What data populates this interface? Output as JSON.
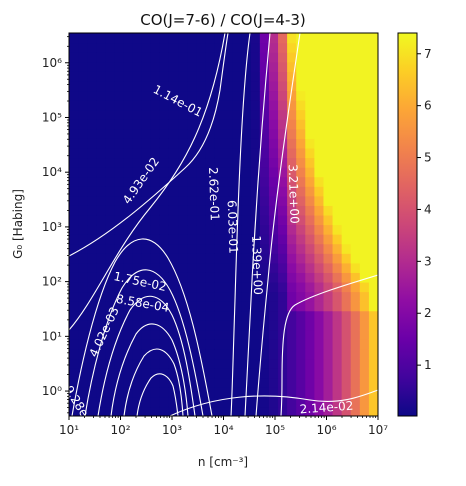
{
  "chart_data": {
    "type": "heatmap",
    "title": "CO(J=7-6) / CO(J=4-3)",
    "xlabel": "n [cm⁻³]",
    "ylabel": "G₀ [Habing]",
    "x_scale": "log",
    "y_scale": "log",
    "xlim": [
      10,
      10000000
    ],
    "ylim": [
      0.35,
      3500000
    ],
    "x_ticks": [
      {
        "value": 10,
        "label": "10¹"
      },
      {
        "value": 100,
        "label": "10²"
      },
      {
        "value": 1000,
        "label": "10³"
      },
      {
        "value": 10000,
        "label": "10⁴"
      },
      {
        "value": 100000,
        "label": "10⁵"
      },
      {
        "value": 1000000,
        "label": "10⁶"
      },
      {
        "value": 10000000,
        "label": "10⁷"
      }
    ],
    "y_ticks": [
      {
        "value": 1,
        "label": "10⁰"
      },
      {
        "value": 10,
        "label": "10¹"
      },
      {
        "value": 100,
        "label": "10²"
      },
      {
        "value": 1000,
        "label": "10³"
      },
      {
        "value": 10000,
        "label": "10⁴"
      },
      {
        "value": 100000,
        "label": "10⁵"
      },
      {
        "value": 1000000,
        "label": "10⁶"
      }
    ],
    "colormap": "plasma",
    "colorbar": {
      "range": [
        0.02,
        7.4
      ],
      "ticks": [
        {
          "value": 1,
          "label": "1"
        },
        {
          "value": 2,
          "label": "2"
        },
        {
          "value": 3,
          "label": "3"
        },
        {
          "value": 4,
          "label": "4"
        },
        {
          "value": 5,
          "label": "5"
        },
        {
          "value": 6,
          "label": "6"
        },
        {
          "value": 7,
          "label": "7"
        }
      ]
    },
    "contour_labels": [
      {
        "text": "1.14e-01",
        "x": 1300,
        "y": 200000,
        "angle": 28
      },
      {
        "text": "4.93e-02",
        "x": 250,
        "y": 7000,
        "angle": -55
      },
      {
        "text": "2.62e-01",
        "x": 6500,
        "y": 4000,
        "angle": 88
      },
      {
        "text": "6.03e-01",
        "x": 15000,
        "y": 1000,
        "angle": 88
      },
      {
        "text": "1.39e+00",
        "x": 45000,
        "y": 200,
        "angle": 88
      },
      {
        "text": "3.21e+00",
        "x": 230000,
        "y": 4000,
        "angle": 88
      },
      {
        "text": "1.75e-02",
        "x": 240,
        "y": 100,
        "angle": 12
      },
      {
        "text": "8.58e-04",
        "x": 270,
        "y": 40,
        "angle": 10
      },
      {
        "text": "4.02e-03",
        "x": 48,
        "y": 12,
        "angle": -65
      },
      {
        "text": "9.28e",
        "x": 14,
        "y": 0.65,
        "angle": 58
      },
      {
        "text": "2.14e-02",
        "x": 1000000,
        "y": 0.5,
        "angle": -4
      }
    ]
  }
}
